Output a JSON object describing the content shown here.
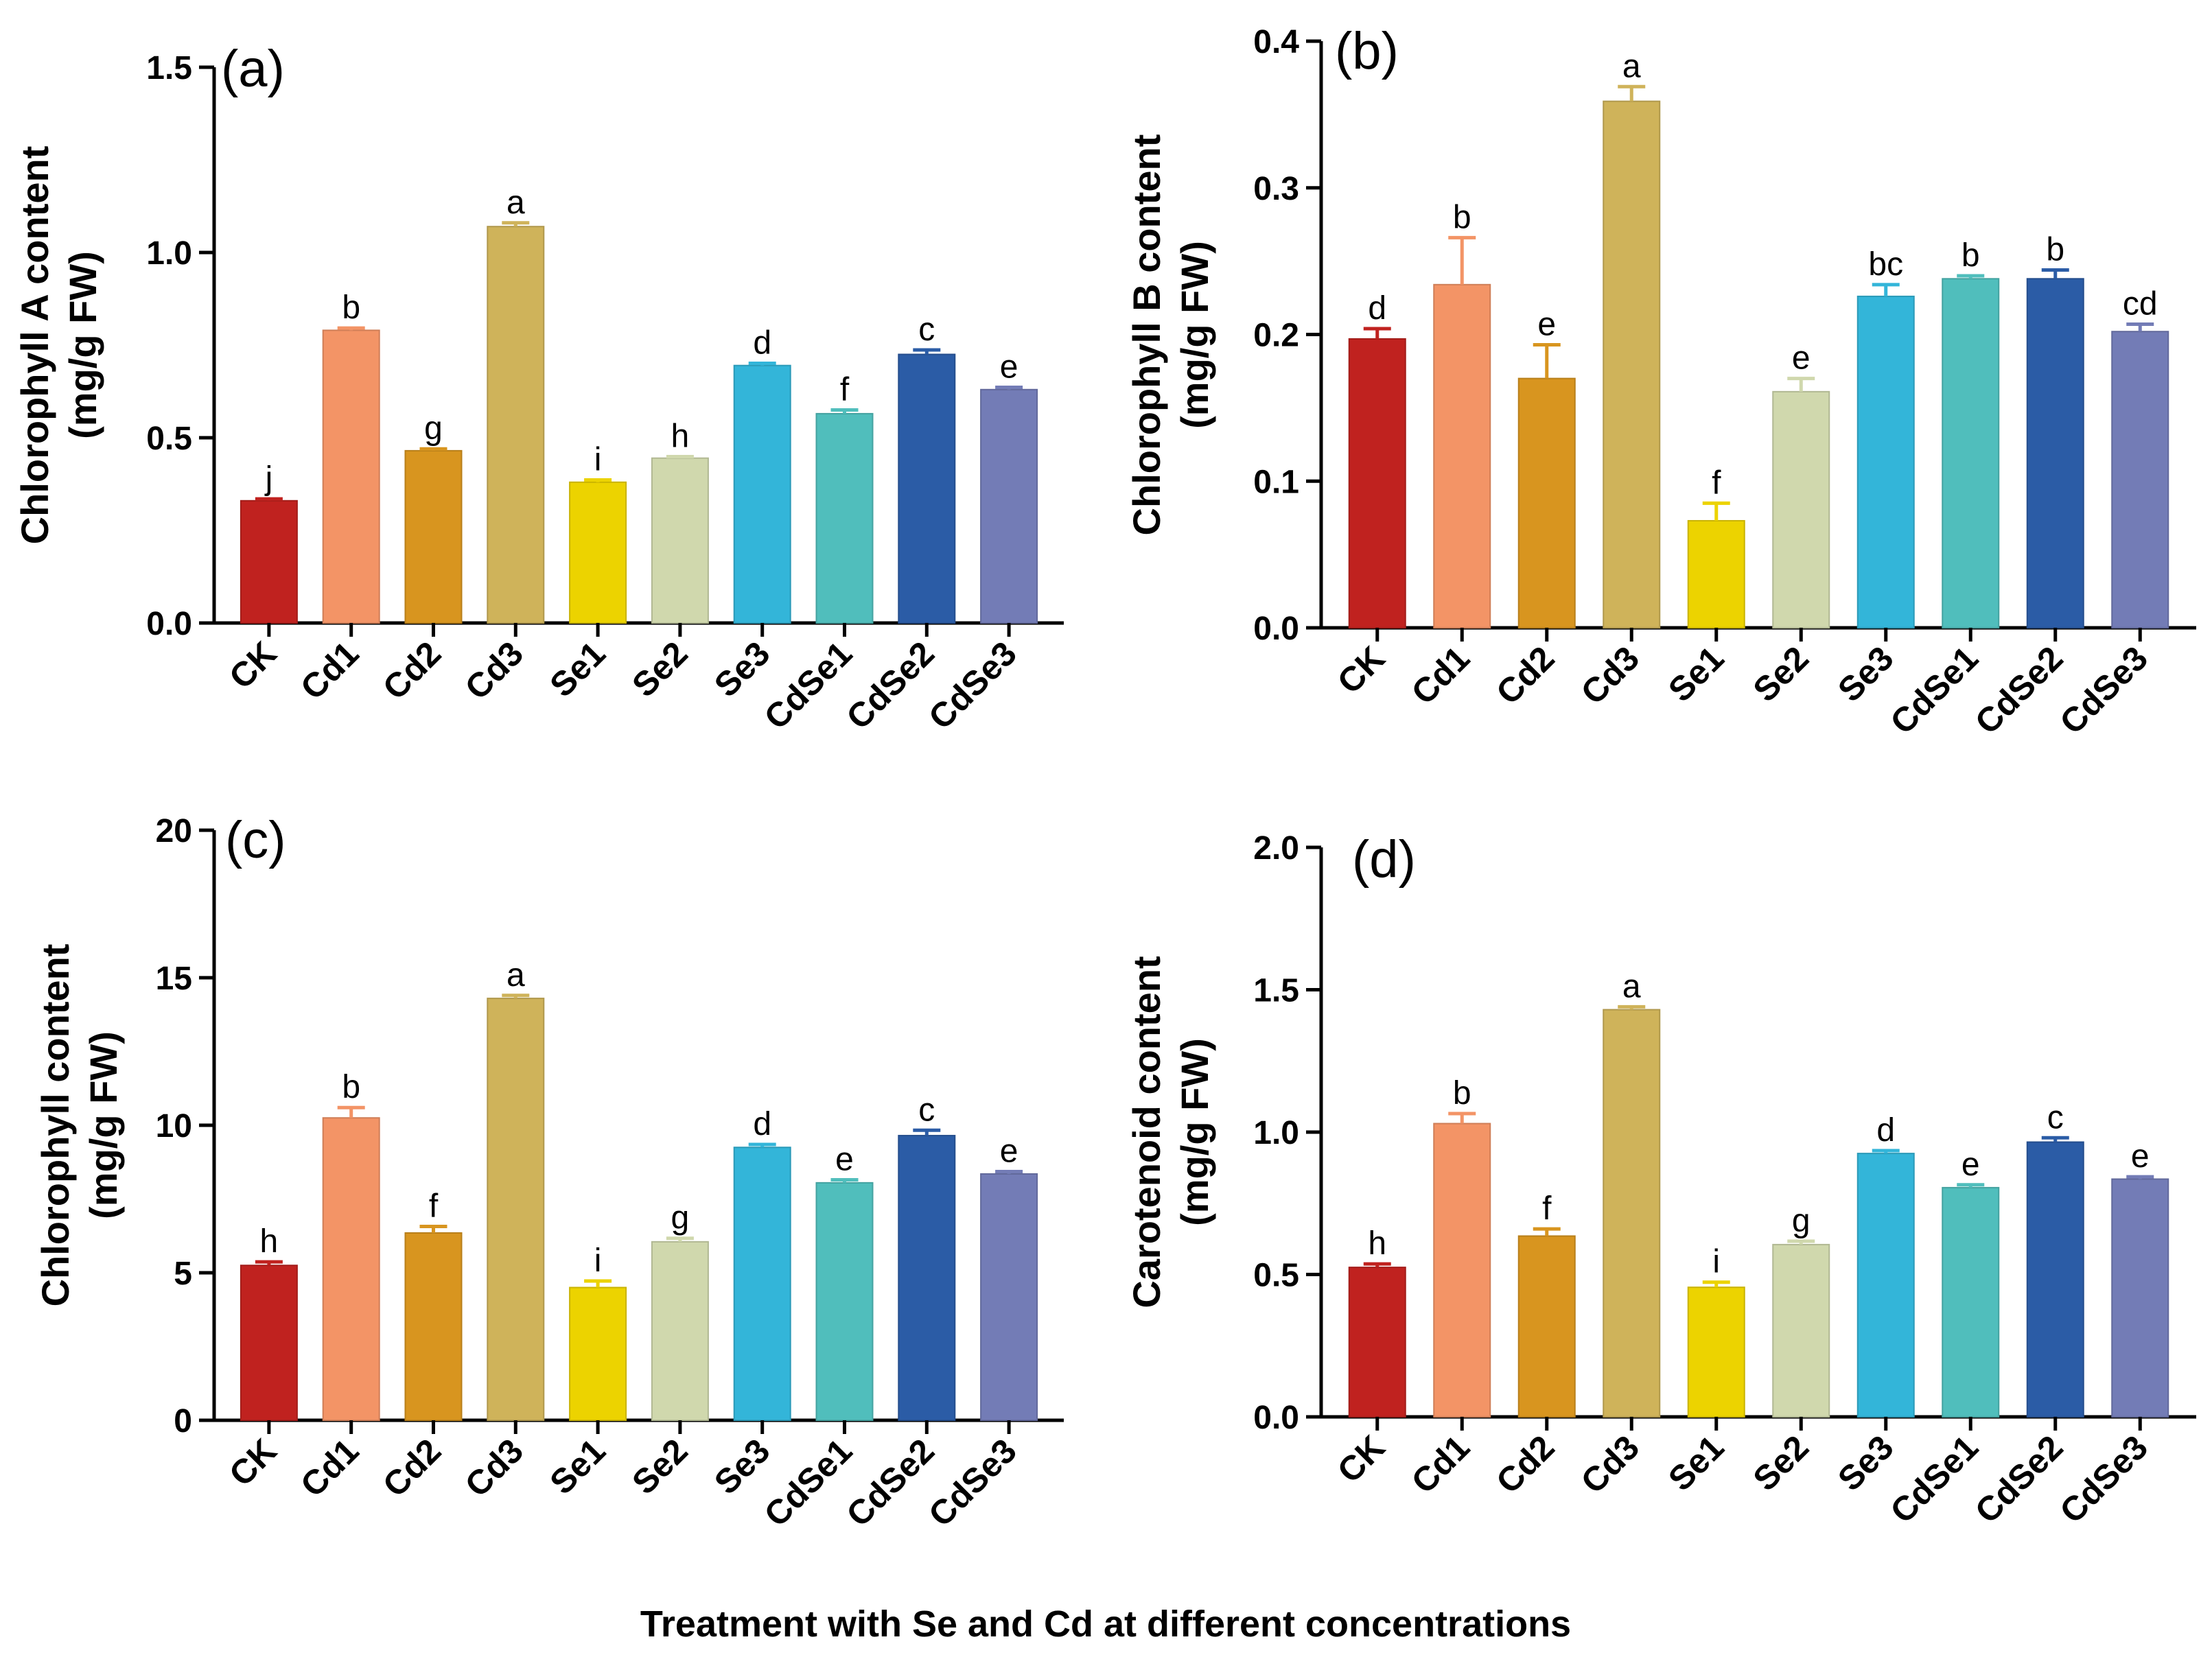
{
  "figure": {
    "xlabel": "Treatment with Se and Cd at different concentrations"
  },
  "chart_data": [
    {
      "type": "bar",
      "panel": "(a)",
      "ylabel_line1": "Chlorophyll A content",
      "ylabel_line2": "(mg/g FW)",
      "categories": [
        "CK",
        "Cd1",
        "Cd2",
        "Cd3",
        "Se1",
        "Se2",
        "Se3",
        "CdSe1",
        "CdSe2",
        "CdSe3"
      ],
      "values": [
        0.33,
        0.79,
        0.465,
        1.07,
        0.38,
        0.445,
        0.695,
        0.565,
        0.725,
        0.63
      ],
      "errors": [
        0.005,
        0.006,
        0.005,
        0.01,
        0.006,
        0.004,
        0.006,
        0.01,
        0.012,
        0.006
      ],
      "significance": [
        "j",
        "b",
        "g",
        "a",
        "i",
        "h",
        "d",
        "f",
        "c",
        "e"
      ],
      "ylim": [
        0,
        1.5
      ],
      "yticks": [
        "0.0",
        "0.5",
        "1.0",
        "1.5"
      ],
      "colors": [
        "#c0221f",
        "#f39466",
        "#d8951f",
        "#cfb35a",
        "#ecd300",
        "#d0d8ad",
        "#33b5d9",
        "#50bebc",
        "#2b5ca6",
        "#737cb6"
      ]
    },
    {
      "type": "bar",
      "panel": "(b)",
      "ylabel_line1": "Chlorophyll B content",
      "ylabel_line2": "(mg/g FW)",
      "categories": [
        "CK",
        "Cd1",
        "Cd2",
        "Cd3",
        "Se1",
        "Se2",
        "Se3",
        "CdSe1",
        "CdSe2",
        "CdSe3"
      ],
      "values": [
        0.197,
        0.234,
        0.17,
        0.359,
        0.073,
        0.161,
        0.226,
        0.238,
        0.238,
        0.202
      ],
      "errors": [
        0.007,
        0.032,
        0.023,
        0.01,
        0.012,
        0.009,
        0.008,
        0.002,
        0.006,
        0.005
      ],
      "significance": [
        "d",
        "b",
        "e",
        "a",
        "f",
        "e",
        "bc",
        "b",
        "b",
        "cd"
      ],
      "ylim": [
        0,
        0.4
      ],
      "yticks": [
        "0.0",
        "0.1",
        "0.2",
        "0.3",
        "0.4"
      ],
      "colors": [
        "#c0221f",
        "#f39466",
        "#d8951f",
        "#cfb35a",
        "#ecd300",
        "#d0d8ad",
        "#33b5d9",
        "#50bebc",
        "#2b5ca6",
        "#737cb6"
      ]
    },
    {
      "type": "bar",
      "panel": "(c)",
      "ylabel_line1": "Chlorophyll content",
      "ylabel_line2": "(mg/g FW)",
      "categories": [
        "CK",
        "Cd1",
        "Cd2",
        "Cd3",
        "Se1",
        "Se2",
        "Se3",
        "CdSe1",
        "CdSe2",
        "CdSe3"
      ],
      "values": [
        5.25,
        10.25,
        6.35,
        14.3,
        4.5,
        6.05,
        9.25,
        8.05,
        9.65,
        8.35
      ],
      "errors": [
        0.12,
        0.35,
        0.22,
        0.1,
        0.22,
        0.12,
        0.1,
        0.1,
        0.18,
        0.08
      ],
      "significance": [
        "h",
        "b",
        "f",
        "a",
        "i",
        "g",
        "d",
        "e",
        "c",
        "e"
      ],
      "ylim": [
        0,
        20
      ],
      "yticks": [
        "0",
        "5",
        "10",
        "15",
        "20"
      ],
      "colors": [
        "#c0221f",
        "#f39466",
        "#d8951f",
        "#cfb35a",
        "#ecd300",
        "#d0d8ad",
        "#33b5d9",
        "#50bebc",
        "#2b5ca6",
        "#737cb6"
      ]
    },
    {
      "type": "bar",
      "panel": "(d)",
      "ylabel_line1": "Carotenoid content",
      "ylabel_line2": "(mg/g FW)",
      "categories": [
        "CK",
        "Cd1",
        "Cd2",
        "Cd3",
        "Se1",
        "Se2",
        "Se3",
        "CdSe1",
        "CdSe2",
        "CdSe3"
      ],
      "values": [
        0.525,
        1.03,
        0.635,
        1.43,
        0.455,
        0.605,
        0.925,
        0.805,
        0.965,
        0.835
      ],
      "errors": [
        0.012,
        0.035,
        0.025,
        0.01,
        0.018,
        0.012,
        0.01,
        0.01,
        0.015,
        0.008
      ],
      "significance": [
        "h",
        "b",
        "f",
        "a",
        "i",
        "g",
        "d",
        "e",
        "c",
        "e"
      ],
      "ylim": [
        0,
        2.0
      ],
      "yticks": [
        "0.0",
        "0.5",
        "1.0",
        "1.5",
        "2.0"
      ],
      "colors": [
        "#c0221f",
        "#f39466",
        "#d8951f",
        "#cfb35a",
        "#ecd300",
        "#d0d8ad",
        "#33b5d9",
        "#50bebc",
        "#2b5ca6",
        "#737cb6"
      ]
    }
  ]
}
